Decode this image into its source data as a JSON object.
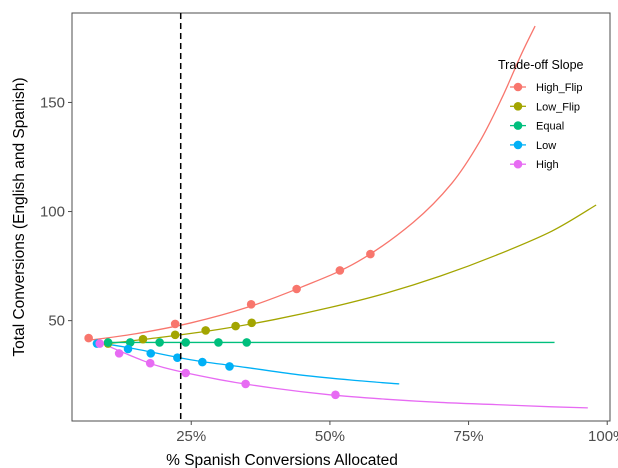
{
  "chart_data": {
    "type": "line",
    "title": "",
    "xlabel": "% Spanish Conversions Allocated",
    "ylabel": "Total Conversions (English and Spanish)",
    "xlim": [
      0.035,
      1.005
    ],
    "ylim": [
      4,
      191
    ],
    "x_ticks": [
      {
        "value": 0.25,
        "label": "25%"
      },
      {
        "value": 0.5,
        "label": "50%"
      },
      {
        "value": 0.75,
        "label": "75%"
      },
      {
        "value": 1.0,
        "label": "100%"
      }
    ],
    "y_ticks": [
      {
        "value": 50,
        "label": "50"
      },
      {
        "value": 100,
        "label": "100"
      },
      {
        "value": 150,
        "label": "150"
      }
    ],
    "vline": {
      "x": 0.231,
      "style": "dashed"
    },
    "grid": false,
    "legend": {
      "title": "Trade-off Slope",
      "position": "top-right"
    },
    "series": [
      {
        "name": "High_Flip",
        "color": "#F8766D",
        "line": [
          [
            0.065,
            41
          ],
          [
            0.15,
            44
          ],
          [
            0.25,
            49
          ],
          [
            0.35,
            56
          ],
          [
            0.45,
            65.5
          ],
          [
            0.55,
            77
          ],
          [
            0.65,
            95
          ],
          [
            0.72,
            113
          ],
          [
            0.77,
            132
          ],
          [
            0.81,
            152
          ],
          [
            0.845,
            172
          ],
          [
            0.87,
            185
          ]
        ],
        "points": [
          [
            0.065,
            42
          ],
          [
            0.221,
            48.5
          ],
          [
            0.358,
            57.5
          ],
          [
            0.44,
            64.5
          ],
          [
            0.518,
            73
          ],
          [
            0.573,
            80.5
          ]
        ]
      },
      {
        "name": "Low_Flip",
        "color": "#A3A500",
        "line": [
          [
            0.1,
            39.5
          ],
          [
            0.2,
            42.5
          ],
          [
            0.3,
            46
          ],
          [
            0.4,
            50.5
          ],
          [
            0.5,
            56
          ],
          [
            0.6,
            62.5
          ],
          [
            0.7,
            70.5
          ],
          [
            0.8,
            80
          ],
          [
            0.9,
            91
          ],
          [
            0.98,
            103
          ]
        ],
        "points": [
          [
            0.1,
            39.5
          ],
          [
            0.163,
            41.5
          ],
          [
            0.221,
            43.5
          ],
          [
            0.276,
            45.5
          ],
          [
            0.33,
            47.5
          ],
          [
            0.359,
            49
          ]
        ]
      },
      {
        "name": "Equal",
        "color": "#00BF7D",
        "line": [
          [
            0.1,
            40
          ],
          [
            0.905,
            40
          ]
        ],
        "points": [
          [
            0.1,
            40
          ],
          [
            0.14,
            40
          ],
          [
            0.193,
            40
          ],
          [
            0.24,
            40
          ],
          [
            0.299,
            40
          ],
          [
            0.35,
            40
          ]
        ]
      },
      {
        "name": "Low",
        "color": "#00B0F6",
        "line": [
          [
            0.08,
            40
          ],
          [
            0.15,
            37
          ],
          [
            0.25,
            32
          ],
          [
            0.35,
            28.5
          ],
          [
            0.45,
            25
          ],
          [
            0.55,
            22.5
          ],
          [
            0.625,
            21
          ]
        ],
        "points": [
          [
            0.08,
            39.5
          ],
          [
            0.136,
            37
          ],
          [
            0.177,
            35
          ],
          [
            0.225,
            33
          ],
          [
            0.27,
            31
          ],
          [
            0.319,
            29
          ]
        ]
      },
      {
        "name": "High",
        "color": "#E76BF3",
        "line": [
          [
            0.085,
            40
          ],
          [
            0.15,
            33
          ],
          [
            0.2,
            28.5
          ],
          [
            0.3,
            23
          ],
          [
            0.4,
            19
          ],
          [
            0.5,
            16
          ],
          [
            0.6,
            14
          ],
          [
            0.7,
            12.5
          ],
          [
            0.8,
            11.5
          ],
          [
            0.9,
            10.5
          ],
          [
            0.965,
            10
          ]
        ],
        "points": [
          [
            0.085,
            39.5
          ],
          [
            0.12,
            35
          ],
          [
            0.176,
            30.5
          ],
          [
            0.24,
            26
          ],
          [
            0.348,
            21
          ],
          [
            0.51,
            16
          ]
        ]
      }
    ]
  }
}
